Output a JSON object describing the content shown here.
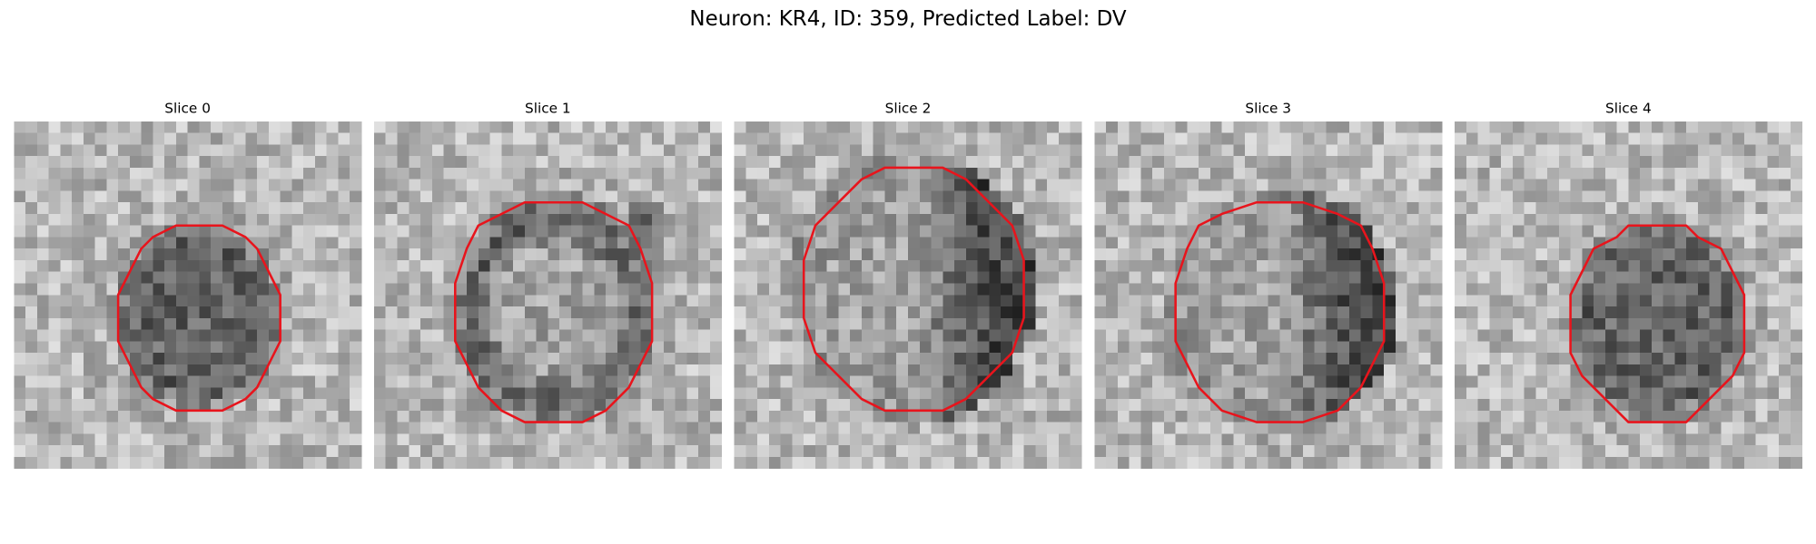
{
  "title": "Neuron: KR4, ID: 359, Predicted Label: DV",
  "panels": [
    {
      "title": "Slice 0"
    },
    {
      "title": "Slice 1"
    },
    {
      "title": "Slice 2"
    },
    {
      "title": "Slice 3"
    },
    {
      "title": "Slice 4"
    }
  ]
}
